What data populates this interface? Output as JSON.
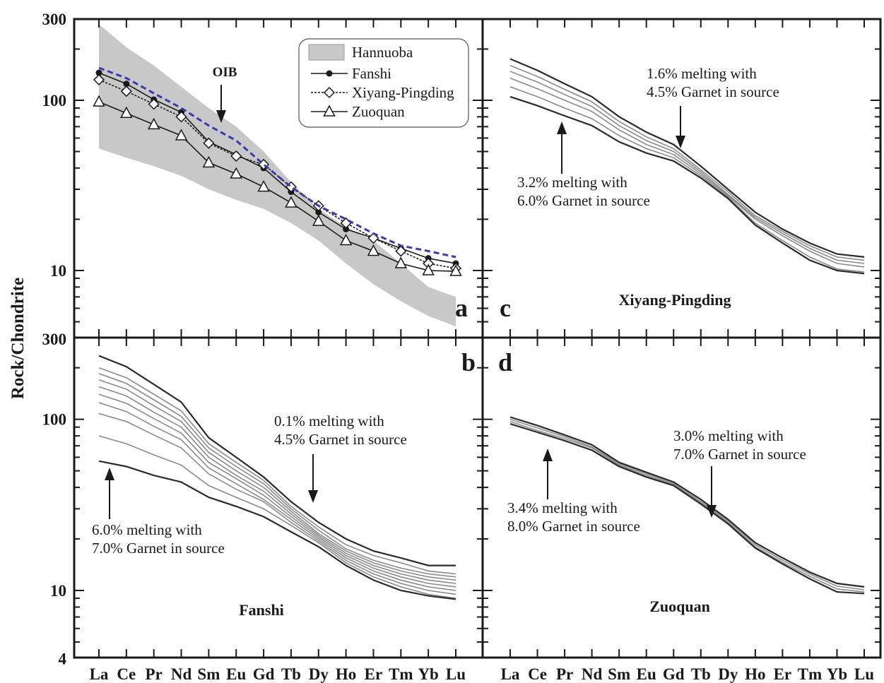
{
  "figure": {
    "ylabel": "Rock/Chondrite",
    "ytick_labels": {
      "top": [
        "300",
        "100",
        "10"
      ],
      "bottom": [
        "300",
        "100",
        "10",
        "4"
      ]
    },
    "elements": [
      "La",
      "Ce",
      "Pr",
      "Nd",
      "Sm",
      "Eu",
      "Gd",
      "Tb",
      "Dy",
      "Ho",
      "Er",
      "Tm",
      "Yb",
      "Lu"
    ],
    "colors": {
      "hannuoba_band": "#c8c8c8",
      "oib": "#3a3ab0",
      "model": "#8a8a8a",
      "axis": "#1a1a1a"
    }
  },
  "chart_data": [
    {
      "id": "a",
      "type": "line",
      "panel_letter": "a",
      "yscale": "log",
      "ylim": [
        4,
        300
      ],
      "categories": [
        "La",
        "Ce",
        "Pr",
        "Nd",
        "Sm",
        "Eu",
        "Gd",
        "Tb",
        "Dy",
        "Ho",
        "Er",
        "Tm",
        "Yb",
        "Lu"
      ],
      "legend": {
        "position": "top-right",
        "entries": [
          "Hannuoba",
          "Fanshi",
          "Xiyang-Pingding",
          "Zuoquan"
        ]
      },
      "band": {
        "name": "Hannuoba",
        "upper": [
          280,
          205,
          160,
          120,
          90,
          70,
          50,
          33,
          23,
          18,
          15,
          11,
          8,
          7
        ],
        "lower": [
          52,
          46,
          41,
          36,
          30,
          26,
          23,
          19,
          15,
          11,
          8.3,
          6.6,
          5.4,
          4.7
        ]
      },
      "series": [
        {
          "name": "Fanshi",
          "marker": "dot",
          "values": [
            145,
            125,
            101,
            85,
            57,
            48,
            40,
            29,
            22,
            17.5,
            15.5,
            13.5,
            11.8,
            11
          ]
        },
        {
          "name": "Xiyang-Pingding",
          "marker": "diamond",
          "values": [
            132,
            113,
            95,
            80,
            56,
            47,
            42,
            31,
            24,
            19,
            15.5,
            13,
            11,
            10.3
          ]
        },
        {
          "name": "Zuoquan",
          "marker": "triangle",
          "values": [
            98,
            84,
            72,
            62,
            43,
            37,
            31,
            25,
            19.5,
            15,
            13,
            11,
            10,
            9.9
          ]
        },
        {
          "name": "OIB",
          "style": "dashed",
          "values": [
            155,
            135,
            110,
            90,
            71,
            58,
            42,
            31,
            24,
            20,
            16.5,
            14,
            13,
            12
          ]
        }
      ],
      "annotations": [
        {
          "text": "OIB",
          "target": "Sm"
        }
      ]
    },
    {
      "id": "b",
      "type": "line",
      "panel_letter": "b",
      "panel_name": "Fanshi",
      "yscale": "log",
      "ylim": [
        4,
        300
      ],
      "categories": [
        "La",
        "Ce",
        "Pr",
        "Nd",
        "Sm",
        "Eu",
        "Gd",
        "Tb",
        "Dy",
        "Ho",
        "Er",
        "Tm",
        "Yb",
        "Lu"
      ],
      "model_lines": [
        [
          235,
          203,
          160,
          126,
          78,
          60,
          46,
          33,
          25,
          20,
          17,
          15.5,
          14,
          14
        ],
        [
          200,
          175,
          140,
          112,
          72,
          56,
          44,
          31,
          23.5,
          18.5,
          16,
          14.5,
          13,
          12.5
        ],
        [
          185,
          162,
          130,
          104,
          68,
          53,
          42,
          30,
          22.5,
          17.5,
          15,
          13.5,
          12.5,
          12
        ],
        [
          170,
          150,
          120,
          97,
          64,
          50,
          40,
          29,
          21.5,
          17,
          14.5,
          13,
          12,
          11.5
        ],
        [
          155,
          137,
          110,
          90,
          60,
          47,
          38,
          28,
          21,
          16.5,
          14,
          12.5,
          11.5,
          11
        ],
        [
          140,
          124,
          101,
          83,
          56,
          45,
          36,
          27,
          20.5,
          16,
          13.5,
          12,
          11,
          10.5
        ],
        [
          125,
          111,
          91,
          76,
          52,
          42,
          34,
          26,
          20,
          15.5,
          13,
          11.5,
          10.5,
          10
        ],
        [
          108,
          97,
          81,
          68,
          48,
          39,
          33,
          25,
          19.5,
          15,
          12.5,
          11,
          10,
          9.5
        ],
        [
          80,
          72,
          62,
          54,
          41,
          35,
          30,
          24,
          19,
          14.5,
          12,
          10.5,
          9.5,
          9
        ],
        [
          57,
          53,
          47,
          43,
          35,
          31,
          27,
          22,
          18,
          14,
          11.5,
          10,
          9.3,
          8.9
        ]
      ],
      "annotations": [
        {
          "text": [
            "0.1% melting with",
            "4.5% Garnet in source"
          ],
          "arrow": "down",
          "target": "Tb"
        },
        {
          "text": [
            "6.0% melting with",
            "7.0% Garnet in source"
          ],
          "arrow": "up",
          "target": "La"
        }
      ]
    },
    {
      "id": "c",
      "type": "line",
      "panel_letter": "c",
      "panel_name": "Xiyang-Pingding",
      "yscale": "log",
      "ylim": [
        4,
        300
      ],
      "categories": [
        "La",
        "Ce",
        "Pr",
        "Nd",
        "Sm",
        "Eu",
        "Gd",
        "Tb",
        "Dy",
        "Ho",
        "Er",
        "Tm",
        "Yb",
        "Lu"
      ],
      "model_lines": [
        [
          175,
          150,
          125,
          105,
          80,
          65,
          55,
          41,
          30,
          22,
          17.5,
          14.5,
          12.5,
          12
        ],
        [
          160,
          138,
          116,
          98,
          75,
          61,
          52,
          39,
          29,
          21,
          17,
          14,
          12,
          11.5
        ],
        [
          148,
          128,
          108,
          92,
          71,
          58,
          50,
          38,
          28,
          20.5,
          16.5,
          13.5,
          11.5,
          11
        ],
        [
          135,
          117,
          100,
          86,
          67,
          55,
          48,
          37,
          27.5,
          20,
          16,
          13,
          11,
          10.5
        ],
        [
          120,
          105,
          90,
          78,
          62,
          52,
          46,
          36,
          27,
          19,
          15,
          12,
          10.2,
          9.8
        ],
        [
          105,
          93,
          81,
          71,
          57,
          49,
          44,
          35,
          26.5,
          18.5,
          14.5,
          11.5,
          10,
          9.6
        ]
      ],
      "annotations": [
        {
          "text": [
            "1.6% melting with",
            "4.5% Garnet in source"
          ],
          "arrow": "down",
          "target": "Gd"
        },
        {
          "text": [
            "3.2% melting with",
            "6.0% Garnet in source"
          ],
          "arrow": "up",
          "target": "Nd"
        }
      ]
    },
    {
      "id": "d",
      "type": "line",
      "panel_letter": "d",
      "panel_name": "Zuoquan",
      "yscale": "log",
      "ylim": [
        4,
        300
      ],
      "categories": [
        "La",
        "Ce",
        "Pr",
        "Nd",
        "Sm",
        "Eu",
        "Gd",
        "Tb",
        "Dy",
        "Ho",
        "Er",
        "Tm",
        "Yb",
        "Lu"
      ],
      "model_lines": [
        [
          103,
          92,
          81,
          71,
          56,
          49,
          43,
          34,
          26,
          19,
          15.5,
          12.8,
          11,
          10.5
        ],
        [
          100,
          89,
          79,
          69,
          55,
          48,
          42,
          33,
          25.5,
          18.5,
          15,
          12.5,
          10.6,
          10.1
        ],
        [
          97,
          86,
          77,
          68,
          54,
          47,
          41.5,
          32.5,
          25,
          18,
          14.6,
          12.1,
          10.2,
          9.8
        ],
        [
          94,
          84,
          75,
          66,
          53,
          46,
          41,
          32,
          24.5,
          17.7,
          14.3,
          11.7,
          9.8,
          9.6
        ]
      ],
      "annotations": [
        {
          "text": [
            "3.0% melting with",
            "7.0% Garnet in source"
          ],
          "arrow": "down",
          "target": "Tb"
        },
        {
          "text": [
            "3.4% melting with",
            "8.0% Garnet in source"
          ],
          "arrow": "up",
          "target": "Nd"
        }
      ]
    }
  ]
}
